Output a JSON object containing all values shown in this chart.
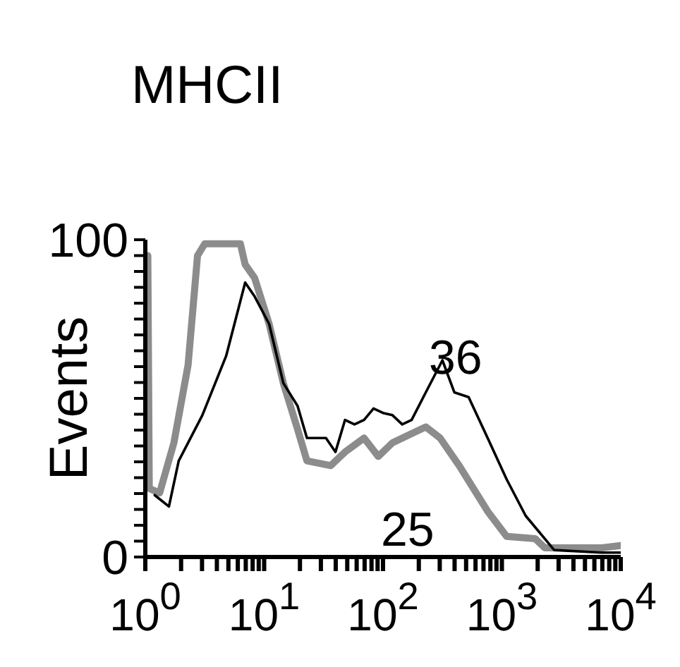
{
  "chart_data": {
    "type": "line",
    "title": "MHCII",
    "ylabel": "Events",
    "log": "x",
    "xlim": [
      1,
      10000
    ],
    "ylim": [
      0,
      100
    ],
    "xticks": [
      {
        "value": 1,
        "label": "10$^{0}$"
      },
      {
        "value": 2,
        "label": null
      },
      {
        "value": 3,
        "label": null
      },
      {
        "value": 4,
        "label": null
      },
      {
        "value": 5,
        "label": null
      },
      {
        "value": 6,
        "label": null
      },
      {
        "value": 7,
        "label": null
      },
      {
        "value": 8,
        "label": null
      },
      {
        "value": 9,
        "label": null
      },
      {
        "value": 10,
        "label": "10$^{1}$"
      },
      {
        "value": 20,
        "label": null
      },
      {
        "value": 30,
        "label": null
      },
      {
        "value": 40,
        "label": null
      },
      {
        "value": 50,
        "label": null
      },
      {
        "value": 60,
        "label": null
      },
      {
        "value": 70,
        "label": null
      },
      {
        "value": 80,
        "label": null
      },
      {
        "value": 90,
        "label": null
      },
      {
        "value": 100,
        "label": "10$^{2}$"
      },
      {
        "value": 200,
        "label": null
      },
      {
        "value": 300,
        "label": null
      },
      {
        "value": 400,
        "label": null
      },
      {
        "value": 500,
        "label": null
      },
      {
        "value": 600,
        "label": null
      },
      {
        "value": 700,
        "label": null
      },
      {
        "value": 800,
        "label": null
      },
      {
        "value": 900,
        "label": null
      },
      {
        "value": 1000,
        "label": "10$^{3}$"
      },
      {
        "value": 2000,
        "label": null
      },
      {
        "value": 3000,
        "label": null
      },
      {
        "value": 4000,
        "label": null
      },
      {
        "value": 5000,
        "label": null
      },
      {
        "value": 6000,
        "label": null
      },
      {
        "value": 7000,
        "label": null
      },
      {
        "value": 8000,
        "label": null
      },
      {
        "value": 9000,
        "label": null
      },
      {
        "value": 10000,
        "label": "10$^{4}$"
      }
    ],
    "yticks": [
      0,
      {
        "value": 5,
        "label": null
      },
      {
        "value": 10,
        "label": null
      },
      {
        "value": 15,
        "label": null
      },
      {
        "value": 20,
        "label": null
      },
      {
        "value": 25,
        "label": null
      },
      {
        "value": 30,
        "label": null
      },
      {
        "value": 35,
        "label": null
      },
      {
        "value": 40,
        "label": null
      },
      {
        "value": 45,
        "label": null
      },
      {
        "value": 50,
        "label": null
      },
      {
        "value": 55,
        "label": null
      },
      {
        "value": 60,
        "label": null
      },
      {
        "value": 65,
        "label": null
      },
      {
        "value": 70,
        "label": null
      },
      {
        "value": 75,
        "label": null
      },
      {
        "value": 80,
        "label": null
      },
      {
        "value": 85,
        "label": null
      },
      {
        "value": 90,
        "label": null
      },
      {
        "value": 95,
        "label": null
      },
      100
    ],
    "grid": false,
    "marker": "none",
    "line_style": "solid",
    "series": [
      {
        "color": "#8c8c8c",
        "x": [
          1.05,
          1.08,
          1.32,
          1.74,
          2.29,
          2.75,
          3.16,
          6.31,
          6.92,
          8.32,
          11,
          14.5,
          19.1,
          22.9,
          36.3,
          47.9,
          69.2,
          91.2,
          120,
          174,
          229,
          302,
          437,
          759,
          1096,
          1905,
          2291,
          6918,
          10000
        ],
        "values": [
          95,
          21.6,
          20.2,
          36,
          60.5,
          95,
          98.7,
          98.7,
          92.2,
          87.9,
          73.5,
          54.8,
          40.3,
          30.3,
          28.8,
          33.1,
          37.5,
          31.7,
          36,
          38.9,
          41,
          37.5,
          28.8,
          14.4,
          6.5,
          5.8,
          2.9,
          2.9,
          3.6
        ]
      },
      {
        "color": "#000000",
        "x": [
          1.2,
          1.58,
          1.91,
          3.02,
          4.79,
          6.92,
          8.32,
          11,
          14.5,
          19.1,
          22.9,
          33.1,
          39.8,
          47.9,
          57.5,
          69.2,
          83.2,
          100,
          120,
          145,
          174,
          229,
          316,
          398,
          525,
          759,
          1096,
          1585,
          2291,
          2754,
          6918,
          10000
        ],
        "values": [
          19.5,
          15.9,
          30.3,
          44.7,
          63.4,
          86.5,
          82.1,
          73.5,
          54.8,
          47.6,
          37.5,
          37.5,
          33.1,
          43.2,
          41.8,
          43.2,
          46.8,
          45.4,
          44.7,
          41.8,
          43.2,
          51.9,
          62,
          51.9,
          50.4,
          37.5,
          24.5,
          13,
          5.8,
          2.2,
          1.4,
          1.4
        ]
      }
    ],
    "annotations": [
      "36",
      "25"
    ]
  }
}
